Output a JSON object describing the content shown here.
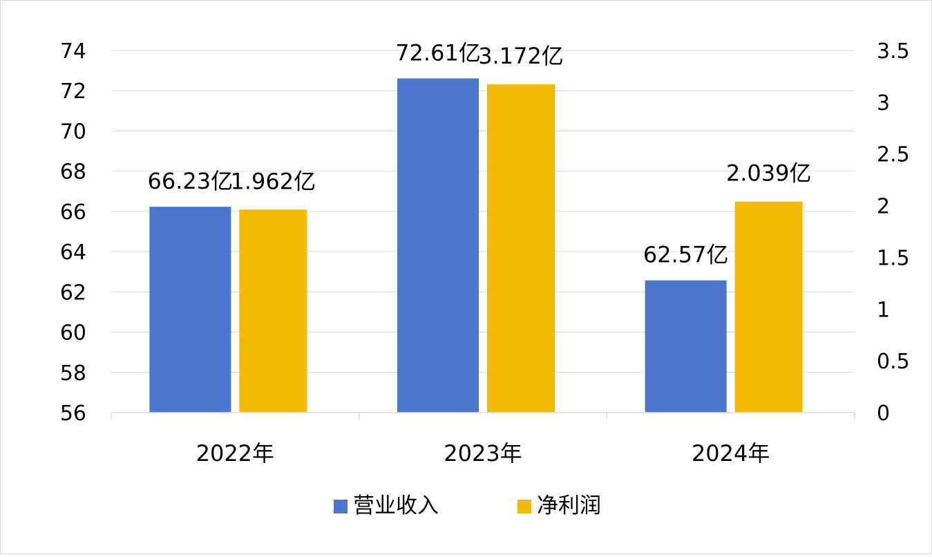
{
  "chart_data": {
    "type": "bar",
    "categories": [
      "2022年",
      "2023年",
      "2024年"
    ],
    "series": [
      {
        "name": "营业收入",
        "axis": "left",
        "color": "#4a76cc",
        "values": [
          66.23,
          72.61,
          62.57
        ],
        "labels": [
          "66.23亿",
          "72.61亿",
          "62.57亿"
        ]
      },
      {
        "name": "净利润",
        "axis": "right",
        "color": "#f0ba00",
        "values": [
          1.962,
          3.172,
          2.039
        ],
        "labels": [
          "1.962亿",
          "3.172亿",
          "2.039亿"
        ]
      }
    ],
    "y_left": {
      "range": [
        56,
        74
      ],
      "ticks": [
        "56",
        "58",
        "60",
        "62",
        "64",
        "66",
        "68",
        "70",
        "72",
        "74"
      ]
    },
    "y_right": {
      "range": [
        0,
        3.5
      ],
      "ticks": [
        "0",
        "0.5",
        "1",
        "1.5",
        "2",
        "2.5",
        "3",
        "3.5"
      ]
    },
    "grid": true,
    "legend_position": "bottom",
    "gridline_color": "#d9d9d9"
  }
}
